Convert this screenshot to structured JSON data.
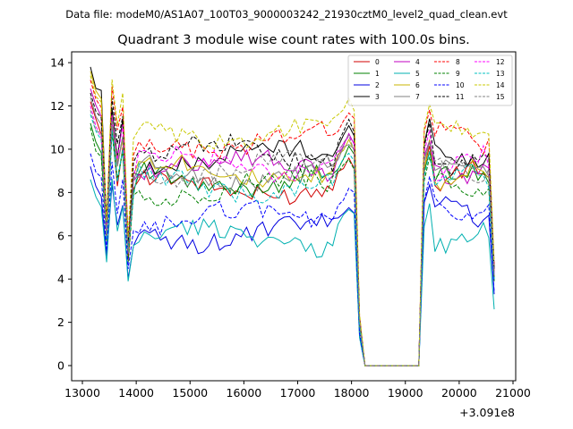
{
  "suptitle": "Data file: modeM0/AS1A07_100T03_9000003242_21930cztM0_level2_quad_clean.evt",
  "chart_data": {
    "type": "line",
    "title": "Quadrant 3 module wise count rates with 100.0s bins.",
    "xlabel": "",
    "ylabel": "",
    "x_offset_label": "+3.091e8",
    "xlim": [
      12800,
      21050
    ],
    "ylim": [
      -0.7,
      14.5
    ],
    "x_ticks": [
      13000,
      14000,
      15000,
      16000,
      17000,
      18000,
      19000,
      20000,
      21000
    ],
    "x_tick_labels": [
      "13000",
      "14000",
      "15000",
      "16000",
      "17000",
      "18000",
      "19000",
      "20000",
      "21000"
    ],
    "y_ticks": [
      0,
      2,
      4,
      6,
      8,
      10,
      12,
      14
    ],
    "y_tick_labels": [
      "0",
      "2",
      "4",
      "6",
      "8",
      "10",
      "12",
      "14"
    ],
    "legend_position": "top-right",
    "legend_columns": 4,
    "x_segments": [
      {
        "start": 13150,
        "end": 18050,
        "step": 100
      },
      {
        "start": 18150,
        "end": 19250,
        "step": 100
      },
      {
        "start": 19350,
        "end": 20650,
        "step": 100
      }
    ],
    "series": [
      {
        "name": "0",
        "color": "#d00000",
        "dash": "solid",
        "shape": {
          "start": 12.2,
          "mid": 8.3,
          "dip": 5.4,
          "gap": 0.0,
          "end2": 8.6,
          "last": 4.1
        }
      },
      {
        "name": "1",
        "color": "#008000",
        "dash": "solid",
        "shape": {
          "start": 11.2,
          "mid": 8.6,
          "dip": 5.6,
          "gap": 0.0,
          "end2": 8.5,
          "last": 4.0
        }
      },
      {
        "name": "2",
        "color": "#0000e0",
        "dash": "solid",
        "shape": {
          "start": 9.2,
          "mid": 6.1,
          "dip": 4.4,
          "gap": 0.0,
          "end2": 7.0,
          "last": 3.3
        }
      },
      {
        "name": "3",
        "color": "#000000",
        "dash": "solid",
        "shape": {
          "start": 13.8,
          "mid": 9.6,
          "dip": 6.0,
          "gap": 0.0,
          "end2": 9.8,
          "last": 4.5
        }
      },
      {
        "name": "4",
        "color": "#c000c0",
        "dash": "solid",
        "shape": {
          "start": 12.8,
          "mid": 9.2,
          "dip": 5.7,
          "gap": 0.0,
          "end2": 9.1,
          "last": 4.3
        }
      },
      {
        "name": "5",
        "color": "#00b0b0",
        "dash": "solid",
        "shape": {
          "start": 8.6,
          "mid": 5.9,
          "dip": 4.2,
          "gap": 0.0,
          "end2": 6.0,
          "last": 2.6
        }
      },
      {
        "name": "6",
        "color": "#c8b400",
        "dash": "solid",
        "shape": {
          "start": 13.6,
          "mid": 9.0,
          "dip": 5.8,
          "gap": 0.0,
          "end2": 8.8,
          "last": 4.4
        }
      },
      {
        "name": "7",
        "color": "#808080",
        "dash": "solid",
        "shape": {
          "start": 12.4,
          "mid": 8.9,
          "dip": 5.6,
          "gap": 0.0,
          "end2": 8.9,
          "last": 4.2
        }
      },
      {
        "name": "8",
        "color": "#ff0000",
        "dash": "dashed",
        "shape": {
          "start": 13.2,
          "mid": 10.4,
          "dip": 6.2,
          "gap": 0.0,
          "end2": 10.4,
          "last": 4.6
        }
      },
      {
        "name": "9",
        "color": "#008000",
        "dash": "dashed",
        "shape": {
          "start": 11.0,
          "mid": 8.2,
          "dip": 5.3,
          "gap": 0.0,
          "end2": 8.3,
          "last": 3.9
        }
      },
      {
        "name": "10",
        "color": "#0000ff",
        "dash": "dashed",
        "shape": {
          "start": 9.8,
          "mid": 6.8,
          "dip": 4.7,
          "gap": 0.0,
          "end2": 7.3,
          "last": 3.4
        }
      },
      {
        "name": "11",
        "color": "#000000",
        "dash": "dashed",
        "shape": {
          "start": 12.6,
          "mid": 9.8,
          "dip": 6.0,
          "gap": 0.0,
          "end2": 9.6,
          "last": 4.4
        }
      },
      {
        "name": "12",
        "color": "#ff00ff",
        "dash": "dashed",
        "shape": {
          "start": 12.0,
          "mid": 9.3,
          "dip": 5.6,
          "gap": 0.0,
          "end2": 9.3,
          "last": 4.2
        }
      },
      {
        "name": "13",
        "color": "#00c0c0",
        "dash": "dashed",
        "shape": {
          "start": 11.6,
          "mid": 8.4,
          "dip": 5.5,
          "gap": 0.0,
          "end2": 8.4,
          "last": 4.0
        }
      },
      {
        "name": "14",
        "color": "#c8c800",
        "dash": "dashed",
        "shape": {
          "start": 13.4,
          "mid": 10.8,
          "dip": 6.3,
          "gap": 0.0,
          "end2": 10.6,
          "last": 4.8
        }
      },
      {
        "name": "15",
        "color": "#808080",
        "dash": "dashed",
        "shape": {
          "start": 11.8,
          "mid": 9.1,
          "dip": 5.5,
          "gap": 0.0,
          "end2": 9.0,
          "last": 4.1
        }
      }
    ]
  }
}
